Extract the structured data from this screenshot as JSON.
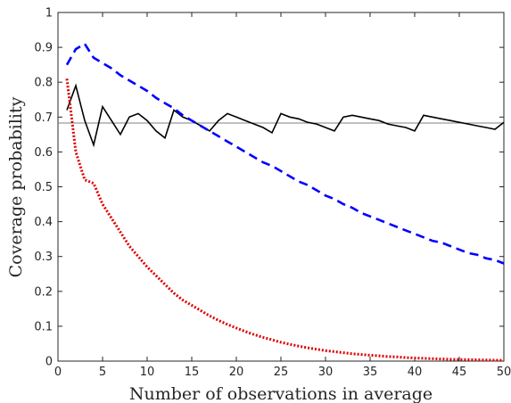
{
  "chart_data": {
    "type": "line",
    "xlabel": "Number of observations in average",
    "ylabel": "Coverage probability",
    "xlim": [
      0,
      50
    ],
    "ylim": [
      0,
      1
    ],
    "xticks": [
      0,
      5,
      10,
      15,
      20,
      25,
      30,
      35,
      40,
      45,
      50
    ],
    "yticks": [
      0,
      0.1,
      0.2,
      0.3,
      0.4,
      0.5,
      0.6,
      0.7,
      0.8,
      0.9,
      1
    ],
    "xtick_labels": [
      "0",
      "5",
      "10",
      "15",
      "20",
      "25",
      "30",
      "35",
      "40",
      "45",
      "50"
    ],
    "ytick_labels": [
      "0",
      "0.1",
      "0.2",
      "0.3",
      "0.4",
      "0.5",
      "0.6",
      "0.7",
      "0.8",
      "0.9",
      "1"
    ],
    "grid": false,
    "reference_line": {
      "y": 0.683,
      "color": "#808080"
    },
    "series": [
      {
        "style": "solid",
        "color": "#000000",
        "x": [
          1,
          2,
          3,
          4,
          5,
          6,
          7,
          8,
          9,
          10,
          11,
          12,
          13,
          14,
          15,
          16,
          17,
          18,
          19,
          20,
          21,
          22,
          23,
          24,
          25,
          26,
          27,
          28,
          29,
          30,
          31,
          32,
          33,
          34,
          35,
          36,
          37,
          38,
          39,
          40,
          41,
          42,
          43,
          44,
          45,
          46,
          47,
          48,
          49,
          50
        ],
        "y": [
          0.72,
          0.79,
          0.69,
          0.62,
          0.73,
          0.69,
          0.65,
          0.7,
          0.71,
          0.69,
          0.66,
          0.64,
          0.72,
          0.7,
          0.69,
          0.675,
          0.66,
          0.69,
          0.71,
          0.7,
          0.69,
          0.68,
          0.67,
          0.655,
          0.71,
          0.7,
          0.695,
          0.685,
          0.68,
          0.67,
          0.66,
          0.7,
          0.705,
          0.7,
          0.695,
          0.69,
          0.68,
          0.675,
          0.67,
          0.66,
          0.705,
          0.7,
          0.695,
          0.69,
          0.685,
          0.68,
          0.675,
          0.67,
          0.665,
          0.685
        ]
      },
      {
        "style": "dashed",
        "color": "#0000ff",
        "x": [
          1,
          2,
          3,
          4,
          5,
          6,
          7,
          8,
          9,
          10,
          11,
          12,
          13,
          14,
          15,
          16,
          17,
          18,
          19,
          20,
          21,
          22,
          23,
          24,
          25,
          26,
          27,
          28,
          29,
          30,
          31,
          32,
          33,
          34,
          35,
          36,
          37,
          38,
          39,
          40,
          41,
          42,
          43,
          44,
          45,
          46,
          47,
          48,
          49,
          50
        ],
        "y": [
          0.85,
          0.895,
          0.91,
          0.87,
          0.855,
          0.84,
          0.82,
          0.805,
          0.79,
          0.775,
          0.755,
          0.74,
          0.725,
          0.705,
          0.69,
          0.675,
          0.66,
          0.645,
          0.63,
          0.615,
          0.6,
          0.585,
          0.57,
          0.56,
          0.545,
          0.53,
          0.515,
          0.505,
          0.49,
          0.475,
          0.465,
          0.45,
          0.44,
          0.425,
          0.415,
          0.405,
          0.395,
          0.385,
          0.375,
          0.365,
          0.355,
          0.345,
          0.34,
          0.33,
          0.32,
          0.31,
          0.305,
          0.295,
          0.29,
          0.28
        ]
      },
      {
        "style": "dotted",
        "color": "#e00000",
        "x": [
          1,
          2,
          3,
          4,
          5,
          6,
          7,
          8,
          9,
          10,
          11,
          12,
          13,
          14,
          15,
          16,
          17,
          18,
          19,
          20,
          21,
          22,
          23,
          24,
          25,
          26,
          27,
          28,
          29,
          30,
          31,
          32,
          33,
          34,
          35,
          36,
          37,
          38,
          39,
          40,
          41,
          42,
          43,
          44,
          45,
          46,
          47,
          48,
          49,
          50
        ],
        "y": [
          0.81,
          0.6,
          0.52,
          0.51,
          0.45,
          0.41,
          0.37,
          0.33,
          0.3,
          0.27,
          0.245,
          0.22,
          0.195,
          0.175,
          0.16,
          0.145,
          0.13,
          0.117,
          0.105,
          0.095,
          0.085,
          0.076,
          0.068,
          0.061,
          0.054,
          0.048,
          0.043,
          0.038,
          0.034,
          0.03,
          0.027,
          0.024,
          0.021,
          0.019,
          0.017,
          0.015,
          0.013,
          0.012,
          0.01,
          0.009,
          0.008,
          0.007,
          0.006,
          0.005,
          0.0045,
          0.004,
          0.0035,
          0.003,
          0.0025,
          0.002
        ]
      }
    ]
  }
}
